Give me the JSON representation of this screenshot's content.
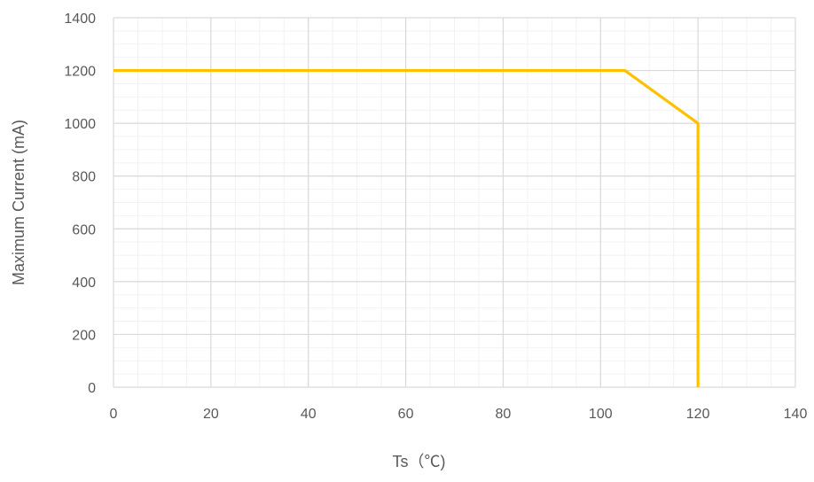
{
  "chart_data": {
    "type": "line",
    "title": "",
    "xlabel": "Ts（℃)",
    "ylabel": "Maximum Current (mA)",
    "xlim": [
      0,
      140
    ],
    "ylim": [
      0,
      1400
    ],
    "xticks": [
      0,
      20,
      40,
      60,
      80,
      100,
      120,
      140
    ],
    "yticks": [
      0,
      200,
      400,
      600,
      800,
      1000,
      1200,
      1400
    ],
    "xtick_labels": [
      "0",
      "20",
      "40",
      "60",
      "80",
      "100",
      "120",
      "140"
    ],
    "ytick_labels": [
      "0",
      "200",
      "400",
      "600",
      "800",
      "1000",
      "1200",
      "1400"
    ],
    "grid": true,
    "minor_grid": true,
    "legend": "none",
    "series": [
      {
        "color": "#FFC000",
        "points": [
          [
            0,
            1200
          ],
          [
            105,
            1200
          ],
          [
            120,
            1000
          ],
          [
            120,
            0
          ]
        ]
      }
    ],
    "colors": {
      "line": "#FFC000",
      "major_grid": "#D9D9D9",
      "minor_grid": "#F2F2F2",
      "text": "#595959"
    }
  }
}
